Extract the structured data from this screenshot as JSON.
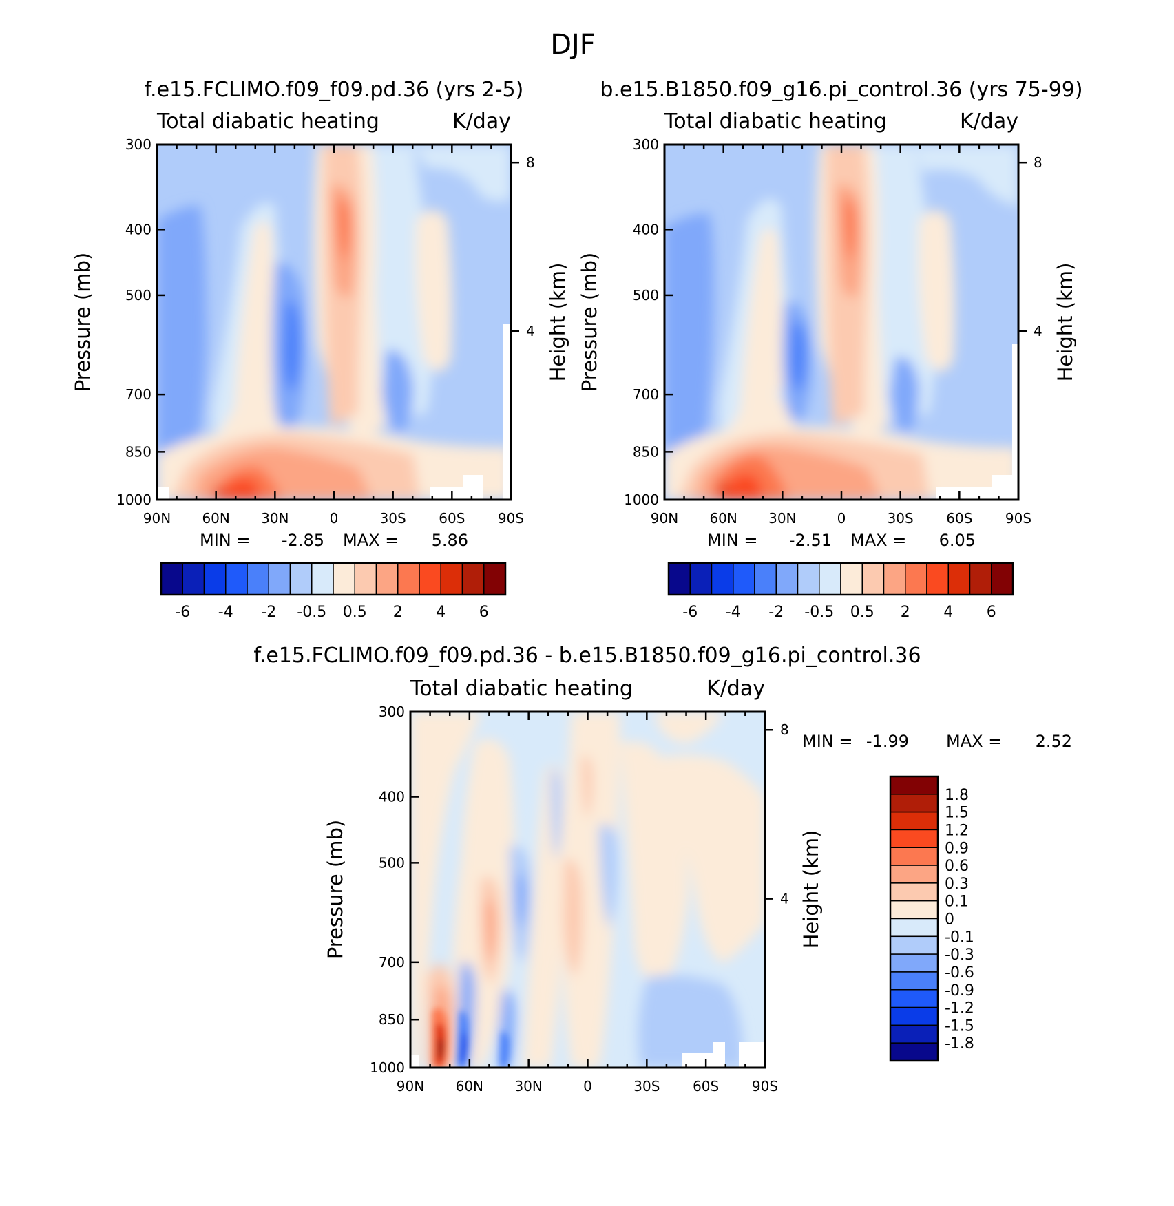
{
  "figure_title": "DJF",
  "chart_data": [
    {
      "type": "heatmap",
      "title": "f.e15.FCLIMO.f09_f09.pd.36 (yrs 2-5)",
      "left_string": "Total diabatic heating",
      "right_string": "K/day",
      "ylabel": "Pressure (mb)",
      "ylabel_right": "Height (km)",
      "x_ticks": [
        "90N",
        "60N",
        "30N",
        "0",
        "30S",
        "60S",
        "90S"
      ],
      "x_values": [
        90,
        60,
        30,
        0,
        -30,
        -60,
        -90
      ],
      "y_ticks": [
        "300",
        "400",
        "500",
        "700",
        "850",
        "1000"
      ],
      "y_values": [
        300,
        400,
        500,
        700,
        850,
        1000
      ],
      "ylim": [
        1000,
        300
      ],
      "y_scale": "log",
      "height_ticks": [
        "8",
        "4"
      ],
      "height_values_km": [
        8,
        4
      ],
      "min_label": "MIN =",
      "min_value": "-2.85",
      "max_label": "MAX =",
      "max_value": "5.86",
      "colorbar": {
        "orientation": "horizontal",
        "colors": [
          "#08088c",
          "#0a20b8",
          "#0a3ce8",
          "#1f5afa",
          "#4a80fa",
          "#80a8fa",
          "#b0ccfa",
          "#d8eafa",
          "#fcebd9",
          "#fccab0",
          "#fca584",
          "#fc7850",
          "#fa4a20",
          "#dc2e08",
          "#b01e08",
          "#820204"
        ],
        "labels": [
          "-6",
          "-4",
          "-2",
          "-0.5",
          "0.5",
          "2",
          "4",
          "6"
        ]
      }
    },
    {
      "type": "heatmap",
      "title": "b.e15.B1850.f09_g16.pi_control.36 (yrs 75-99)",
      "left_string": "Total diabatic heating",
      "right_string": "K/day",
      "ylabel": "Pressure (mb)",
      "ylabel_right": "Height (km)",
      "x_ticks": [
        "90N",
        "60N",
        "30N",
        "0",
        "30S",
        "60S",
        "90S"
      ],
      "x_values": [
        90,
        60,
        30,
        0,
        -30,
        -60,
        -90
      ],
      "y_ticks": [
        "300",
        "400",
        "500",
        "700",
        "850",
        "1000"
      ],
      "y_values": [
        300,
        400,
        500,
        700,
        850,
        1000
      ],
      "ylim": [
        1000,
        300
      ],
      "y_scale": "log",
      "height_ticks": [
        "8",
        "4"
      ],
      "height_values_km": [
        8,
        4
      ],
      "min_label": "MIN =",
      "min_value": "-2.51",
      "max_label": "MAX =",
      "max_value": "6.05",
      "colorbar": {
        "orientation": "horizontal",
        "colors": [
          "#08088c",
          "#0a20b8",
          "#0a3ce8",
          "#1f5afa",
          "#4a80fa",
          "#80a8fa",
          "#b0ccfa",
          "#d8eafa",
          "#fcebd9",
          "#fccab0",
          "#fca584",
          "#fc7850",
          "#fa4a20",
          "#dc2e08",
          "#b01e08",
          "#820204"
        ],
        "labels": [
          "-6",
          "-4",
          "-2",
          "-0.5",
          "0.5",
          "2",
          "4",
          "6"
        ]
      }
    },
    {
      "type": "heatmap",
      "title": "f.e15.FCLIMO.f09_f09.pd.36 - b.e15.B1850.f09_g16.pi_control.36",
      "left_string": "Total diabatic heating",
      "right_string": "K/day",
      "ylabel": "Pressure (mb)",
      "ylabel_right": "Height (km)",
      "x_ticks": [
        "90N",
        "60N",
        "30N",
        "0",
        "30S",
        "60S",
        "90S"
      ],
      "x_values": [
        90,
        60,
        30,
        0,
        -30,
        -60,
        -90
      ],
      "y_ticks": [
        "300",
        "400",
        "500",
        "700",
        "850",
        "1000"
      ],
      "y_values": [
        300,
        400,
        500,
        700,
        850,
        1000
      ],
      "ylim": [
        1000,
        300
      ],
      "y_scale": "log",
      "height_ticks": [
        "8",
        "4"
      ],
      "height_values_km": [
        8,
        4
      ],
      "min_label": "MIN =",
      "min_value": "-1.99",
      "max_label": "MAX =",
      "max_value": "2.52",
      "colorbar": {
        "orientation": "vertical",
        "colors": [
          "#820204",
          "#b01e08",
          "#dc2e08",
          "#fa4a20",
          "#fc7850",
          "#fca584",
          "#fccab0",
          "#fcebd9",
          "#d8eafa",
          "#b0ccfa",
          "#80a8fa",
          "#4a80fa",
          "#1f5afa",
          "#0a3ce8",
          "#0a20b8",
          "#08088c"
        ],
        "labels": [
          "1.8",
          "1.5",
          "1.2",
          "0.9",
          "0.6",
          "0.3",
          "0.1",
          "0",
          "-0.1",
          "-0.3",
          "-0.6",
          "-0.9",
          "-1.2",
          "-1.5",
          "-1.8"
        ]
      }
    }
  ]
}
